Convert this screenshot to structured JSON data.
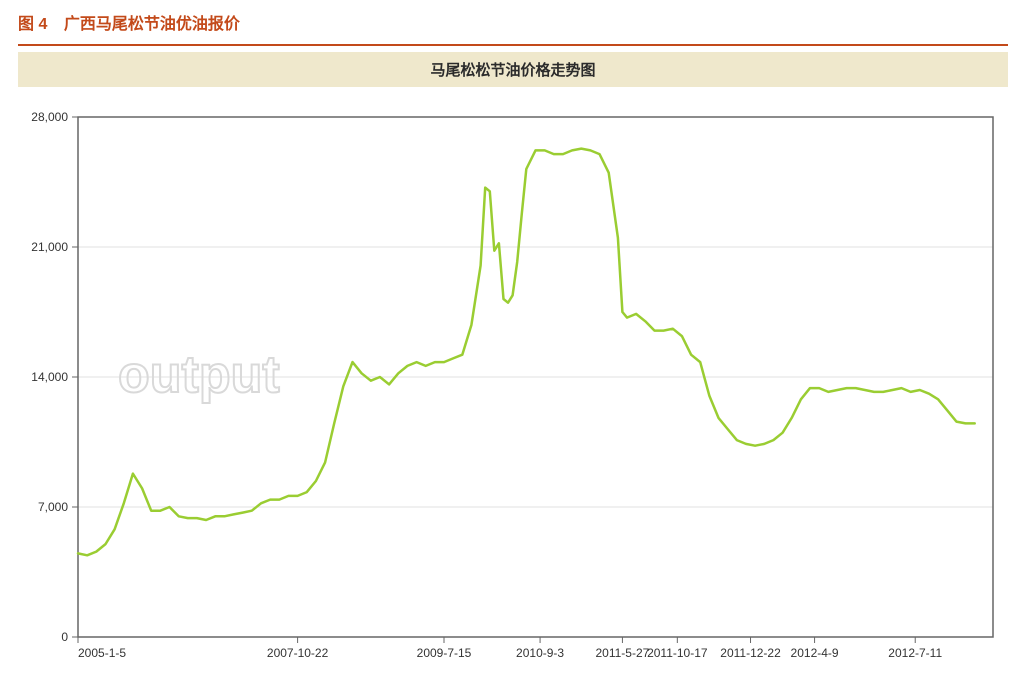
{
  "caption": {
    "lead": "图 4",
    "title": "广西马尾松节油优油报价",
    "divider_color": "#c34a1a"
  },
  "chart": {
    "title": "马尾松松节油价格走势图",
    "title_bar_bg": "#efe8cc",
    "background": "#ffffff",
    "plot_border_color": "#666666",
    "grid_color": "#e2e2e2",
    "axis_label_color": "#333333",
    "axis_label_fontsize": 12,
    "line_color": "#9acd32",
    "line_width": 2.5,
    "watermark_text": "output",
    "watermark_color": "#d9d9d9",
    "y": {
      "min": 0,
      "max": 28000,
      "ticks": [
        0,
        7000,
        14000,
        21000,
        28000
      ],
      "tick_labels": [
        "0",
        "7,000",
        "14,000",
        "21,000",
        "28,000"
      ]
    },
    "x": {
      "min": 0,
      "max": 200,
      "ticks": [
        0,
        48,
        80,
        101,
        119,
        131,
        147,
        161,
        183
      ],
      "tick_labels": [
        "2005-1-5",
        "2007-10-22",
        "2009-7-15",
        "2010-9-3",
        "2011-5-27",
        "2011-10-17",
        "2011-12-22",
        "2012-4-9",
        "2012-7-11"
      ]
    },
    "series": [
      {
        "x": 0,
        "y": 4500
      },
      {
        "x": 2,
        "y": 4400
      },
      {
        "x": 4,
        "y": 4600
      },
      {
        "x": 6,
        "y": 5000
      },
      {
        "x": 8,
        "y": 5800
      },
      {
        "x": 10,
        "y": 7200
      },
      {
        "x": 12,
        "y": 8800
      },
      {
        "x": 14,
        "y": 8000
      },
      {
        "x": 16,
        "y": 6800
      },
      {
        "x": 18,
        "y": 6800
      },
      {
        "x": 20,
        "y": 7000
      },
      {
        "x": 22,
        "y": 6500
      },
      {
        "x": 24,
        "y": 6400
      },
      {
        "x": 26,
        "y": 6400
      },
      {
        "x": 28,
        "y": 6300
      },
      {
        "x": 30,
        "y": 6500
      },
      {
        "x": 32,
        "y": 6500
      },
      {
        "x": 34,
        "y": 6600
      },
      {
        "x": 36,
        "y": 6700
      },
      {
        "x": 38,
        "y": 6800
      },
      {
        "x": 40,
        "y": 7200
      },
      {
        "x": 42,
        "y": 7400
      },
      {
        "x": 44,
        "y": 7400
      },
      {
        "x": 46,
        "y": 7600
      },
      {
        "x": 48,
        "y": 7600
      },
      {
        "x": 50,
        "y": 7800
      },
      {
        "x": 52,
        "y": 8400
      },
      {
        "x": 54,
        "y": 9400
      },
      {
        "x": 56,
        "y": 11500
      },
      {
        "x": 58,
        "y": 13500
      },
      {
        "x": 60,
        "y": 14800
      },
      {
        "x": 62,
        "y": 14200
      },
      {
        "x": 64,
        "y": 13800
      },
      {
        "x": 66,
        "y": 14000
      },
      {
        "x": 68,
        "y": 13600
      },
      {
        "x": 70,
        "y": 14200
      },
      {
        "x": 72,
        "y": 14600
      },
      {
        "x": 74,
        "y": 14800
      },
      {
        "x": 76,
        "y": 14600
      },
      {
        "x": 78,
        "y": 14800
      },
      {
        "x": 80,
        "y": 14800
      },
      {
        "x": 82,
        "y": 15000
      },
      {
        "x": 84,
        "y": 15200
      },
      {
        "x": 86,
        "y": 16800
      },
      {
        "x": 88,
        "y": 20000
      },
      {
        "x": 89,
        "y": 24200
      },
      {
        "x": 90,
        "y": 24000
      },
      {
        "x": 91,
        "y": 20800
      },
      {
        "x": 92,
        "y": 21200
      },
      {
        "x": 93,
        "y": 18200
      },
      {
        "x": 94,
        "y": 18000
      },
      {
        "x": 95,
        "y": 18400
      },
      {
        "x": 96,
        "y": 20200
      },
      {
        "x": 97,
        "y": 22800
      },
      {
        "x": 98,
        "y": 25200
      },
      {
        "x": 100,
        "y": 26200
      },
      {
        "x": 102,
        "y": 26200
      },
      {
        "x": 104,
        "y": 26000
      },
      {
        "x": 106,
        "y": 26000
      },
      {
        "x": 108,
        "y": 26200
      },
      {
        "x": 110,
        "y": 26300
      },
      {
        "x": 112,
        "y": 26200
      },
      {
        "x": 114,
        "y": 26000
      },
      {
        "x": 116,
        "y": 25000
      },
      {
        "x": 118,
        "y": 21500
      },
      {
        "x": 119,
        "y": 17500
      },
      {
        "x": 120,
        "y": 17200
      },
      {
        "x": 122,
        "y": 17400
      },
      {
        "x": 124,
        "y": 17000
      },
      {
        "x": 126,
        "y": 16500
      },
      {
        "x": 128,
        "y": 16500
      },
      {
        "x": 130,
        "y": 16600
      },
      {
        "x": 132,
        "y": 16200
      },
      {
        "x": 134,
        "y": 15200
      },
      {
        "x": 136,
        "y": 14800
      },
      {
        "x": 138,
        "y": 13000
      },
      {
        "x": 140,
        "y": 11800
      },
      {
        "x": 142,
        "y": 11200
      },
      {
        "x": 144,
        "y": 10600
      },
      {
        "x": 146,
        "y": 10400
      },
      {
        "x": 148,
        "y": 10300
      },
      {
        "x": 150,
        "y": 10400
      },
      {
        "x": 152,
        "y": 10600
      },
      {
        "x": 154,
        "y": 11000
      },
      {
        "x": 156,
        "y": 11800
      },
      {
        "x": 158,
        "y": 12800
      },
      {
        "x": 160,
        "y": 13400
      },
      {
        "x": 162,
        "y": 13400
      },
      {
        "x": 164,
        "y": 13200
      },
      {
        "x": 166,
        "y": 13300
      },
      {
        "x": 168,
        "y": 13400
      },
      {
        "x": 170,
        "y": 13400
      },
      {
        "x": 172,
        "y": 13300
      },
      {
        "x": 174,
        "y": 13200
      },
      {
        "x": 176,
        "y": 13200
      },
      {
        "x": 178,
        "y": 13300
      },
      {
        "x": 180,
        "y": 13400
      },
      {
        "x": 182,
        "y": 13200
      },
      {
        "x": 184,
        "y": 13300
      },
      {
        "x": 186,
        "y": 13100
      },
      {
        "x": 188,
        "y": 12800
      },
      {
        "x": 190,
        "y": 12200
      },
      {
        "x": 192,
        "y": 11600
      },
      {
        "x": 194,
        "y": 11500
      },
      {
        "x": 196,
        "y": 11500
      }
    ]
  }
}
